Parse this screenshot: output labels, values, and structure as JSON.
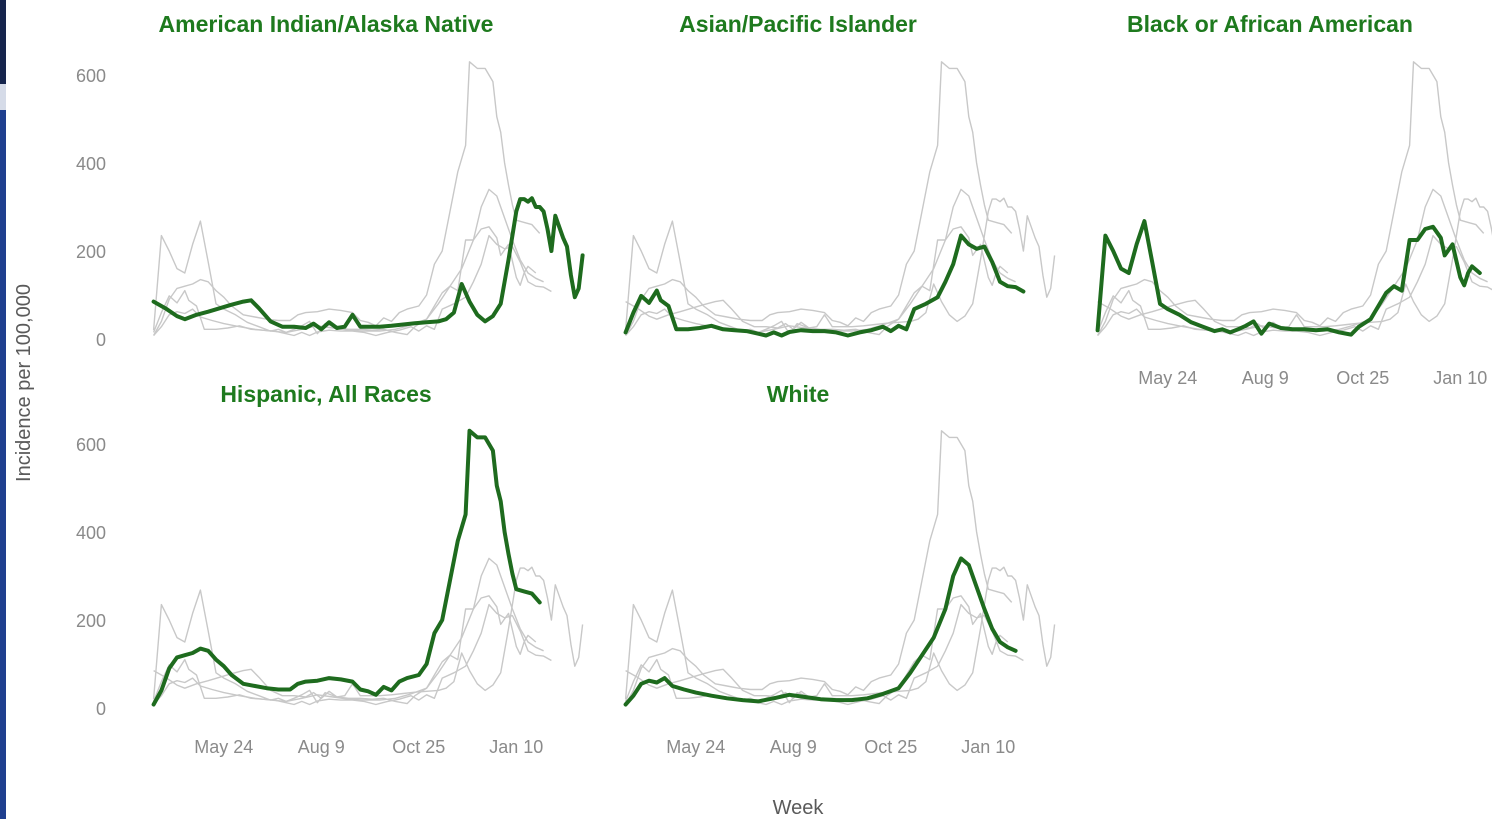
{
  "chart_data": {
    "type": "line",
    "ylabel": "Incidence per 100,000",
    "xlabel": "Week",
    "ylim": [
      0,
      650
    ],
    "y_ticks": [
      0,
      200,
      400,
      600
    ],
    "x_ticks": [
      "May 24",
      "Aug 9",
      "Oct 25",
      "Jan 10"
    ],
    "x_tick_positions": [
      0.22,
      0.47,
      0.72,
      0.97
    ],
    "grid": false,
    "colors": {
      "highlight": "#1e6b1e",
      "background_series": "#c8c8c8",
      "title": "#1e7a1e"
    },
    "panels": [
      {
        "title": "American Indian/Alaska Native",
        "values": [
          [
            0.04,
            85
          ],
          [
            0.07,
            70
          ],
          [
            0.1,
            52
          ],
          [
            0.12,
            45
          ],
          [
            0.15,
            55
          ],
          [
            0.18,
            62
          ],
          [
            0.21,
            70
          ],
          [
            0.24,
            78
          ],
          [
            0.27,
            85
          ],
          [
            0.29,
            88
          ],
          [
            0.31,
            70
          ],
          [
            0.34,
            40
          ],
          [
            0.37,
            28
          ],
          [
            0.4,
            28
          ],
          [
            0.43,
            25
          ],
          [
            0.45,
            35
          ],
          [
            0.47,
            22
          ],
          [
            0.49,
            38
          ],
          [
            0.51,
            25
          ],
          [
            0.53,
            28
          ],
          [
            0.55,
            55
          ],
          [
            0.57,
            28
          ],
          [
            0.59,
            28
          ],
          [
            0.62,
            28
          ],
          [
            0.65,
            30
          ],
          [
            0.68,
            33
          ],
          [
            0.71,
            36
          ],
          [
            0.74,
            38
          ],
          [
            0.77,
            40
          ],
          [
            0.79,
            45
          ],
          [
            0.81,
            60
          ],
          [
            0.83,
            125
          ],
          [
            0.85,
            85
          ],
          [
            0.87,
            55
          ],
          [
            0.89,
            40
          ],
          [
            0.91,
            52
          ],
          [
            0.93,
            80
          ],
          [
            0.95,
            180
          ],
          [
            0.97,
            290
          ],
          [
            0.98,
            318
          ],
          [
            0.99,
            318
          ],
          [
            1.0,
            312
          ],
          [
            1.01,
            320
          ],
          [
            1.02,
            300
          ],
          [
            1.03,
            300
          ],
          [
            1.04,
            290
          ],
          [
            1.05,
            250
          ],
          [
            1.06,
            200
          ],
          [
            1.07,
            280
          ],
          [
            1.08,
            255
          ],
          [
            1.09,
            230
          ],
          [
            1.1,
            210
          ],
          [
            1.11,
            145
          ],
          [
            1.12,
            95
          ],
          [
            1.13,
            115
          ],
          [
            1.14,
            190
          ]
        ]
      },
      {
        "title": "Asian/Pacific Islander",
        "values": [
          [
            0.04,
            15
          ],
          [
            0.06,
            60
          ],
          [
            0.08,
            98
          ],
          [
            0.1,
            82
          ],
          [
            0.12,
            110
          ],
          [
            0.13,
            88
          ],
          [
            0.15,
            75
          ],
          [
            0.17,
            22
          ],
          [
            0.2,
            22
          ],
          [
            0.23,
            25
          ],
          [
            0.26,
            30
          ],
          [
            0.29,
            22
          ],
          [
            0.32,
            20
          ],
          [
            0.35,
            18
          ],
          [
            0.38,
            12
          ],
          [
            0.4,
            8
          ],
          [
            0.42,
            15
          ],
          [
            0.44,
            8
          ],
          [
            0.46,
            16
          ],
          [
            0.49,
            20
          ],
          [
            0.52,
            18
          ],
          [
            0.55,
            18
          ],
          [
            0.58,
            15
          ],
          [
            0.61,
            8
          ],
          [
            0.64,
            15
          ],
          [
            0.67,
            20
          ],
          [
            0.7,
            28
          ],
          [
            0.72,
            18
          ],
          [
            0.74,
            30
          ],
          [
            0.76,
            22
          ],
          [
            0.78,
            68
          ],
          [
            0.81,
            80
          ],
          [
            0.84,
            95
          ],
          [
            0.86,
            130
          ],
          [
            0.88,
            170
          ],
          [
            0.9,
            235
          ],
          [
            0.92,
            215
          ],
          [
            0.94,
            205
          ],
          [
            0.96,
            210
          ],
          [
            0.98,
            175
          ],
          [
            1.0,
            130
          ],
          [
            1.02,
            120
          ],
          [
            1.04,
            118
          ],
          [
            1.06,
            108
          ]
        ]
      },
      {
        "title": "Black or African American",
        "values": [
          [
            0.04,
            20
          ],
          [
            0.06,
            235
          ],
          [
            0.08,
            200
          ],
          [
            0.1,
            160
          ],
          [
            0.12,
            150
          ],
          [
            0.14,
            215
          ],
          [
            0.16,
            268
          ],
          [
            0.18,
            175
          ],
          [
            0.2,
            80
          ],
          [
            0.22,
            68
          ],
          [
            0.25,
            55
          ],
          [
            0.28,
            38
          ],
          [
            0.31,
            28
          ],
          [
            0.34,
            18
          ],
          [
            0.36,
            22
          ],
          [
            0.38,
            15
          ],
          [
            0.4,
            22
          ],
          [
            0.42,
            30
          ],
          [
            0.44,
            40
          ],
          [
            0.46,
            12
          ],
          [
            0.48,
            35
          ],
          [
            0.51,
            25
          ],
          [
            0.54,
            22
          ],
          [
            0.57,
            22
          ],
          [
            0.6,
            20
          ],
          [
            0.63,
            22
          ],
          [
            0.66,
            15
          ],
          [
            0.69,
            10
          ],
          [
            0.71,
            28
          ],
          [
            0.74,
            45
          ],
          [
            0.76,
            75
          ],
          [
            0.78,
            105
          ],
          [
            0.8,
            120
          ],
          [
            0.82,
            110
          ],
          [
            0.84,
            225
          ],
          [
            0.86,
            225
          ],
          [
            0.88,
            250
          ],
          [
            0.9,
            255
          ],
          [
            0.92,
            230
          ],
          [
            0.93,
            190
          ],
          [
            0.95,
            215
          ],
          [
            0.97,
            140
          ],
          [
            0.98,
            122
          ],
          [
            0.99,
            150
          ],
          [
            1.0,
            165
          ],
          [
            1.02,
            150
          ]
        ]
      },
      {
        "title": "Hispanic, All Races",
        "values": [
          [
            0.04,
            8
          ],
          [
            0.06,
            40
          ],
          [
            0.08,
            90
          ],
          [
            0.1,
            115
          ],
          [
            0.12,
            120
          ],
          [
            0.14,
            125
          ],
          [
            0.16,
            135
          ],
          [
            0.18,
            130
          ],
          [
            0.2,
            110
          ],
          [
            0.22,
            95
          ],
          [
            0.24,
            75
          ],
          [
            0.27,
            55
          ],
          [
            0.3,
            50
          ],
          [
            0.33,
            45
          ],
          [
            0.36,
            42
          ],
          [
            0.39,
            42
          ],
          [
            0.41,
            55
          ],
          [
            0.43,
            60
          ],
          [
            0.46,
            62
          ],
          [
            0.49,
            68
          ],
          [
            0.52,
            65
          ],
          [
            0.55,
            60
          ],
          [
            0.57,
            42
          ],
          [
            0.59,
            38
          ],
          [
            0.61,
            30
          ],
          [
            0.63,
            48
          ],
          [
            0.65,
            40
          ],
          [
            0.67,
            60
          ],
          [
            0.69,
            68
          ],
          [
            0.72,
            75
          ],
          [
            0.74,
            100
          ],
          [
            0.76,
            170
          ],
          [
            0.78,
            200
          ],
          [
            0.8,
            290
          ],
          [
            0.82,
            380
          ],
          [
            0.84,
            440
          ],
          [
            0.85,
            630
          ],
          [
            0.87,
            615
          ],
          [
            0.89,
            615
          ],
          [
            0.91,
            585
          ],
          [
            0.92,
            505
          ],
          [
            0.93,
            470
          ],
          [
            0.94,
            400
          ],
          [
            0.95,
            350
          ],
          [
            0.96,
            305
          ],
          [
            0.97,
            270
          ],
          [
            0.99,
            265
          ],
          [
            1.01,
            260
          ],
          [
            1.03,
            240
          ]
        ]
      },
      {
        "title": "White",
        "values": [
          [
            0.04,
            8
          ],
          [
            0.06,
            28
          ],
          [
            0.08,
            55
          ],
          [
            0.1,
            62
          ],
          [
            0.12,
            58
          ],
          [
            0.14,
            68
          ],
          [
            0.16,
            50
          ],
          [
            0.19,
            42
          ],
          [
            0.22,
            35
          ],
          [
            0.26,
            28
          ],
          [
            0.3,
            22
          ],
          [
            0.34,
            18
          ],
          [
            0.38,
            15
          ],
          [
            0.42,
            22
          ],
          [
            0.46,
            30
          ],
          [
            0.5,
            25
          ],
          [
            0.54,
            20
          ],
          [
            0.58,
            18
          ],
          [
            0.62,
            18
          ],
          [
            0.66,
            22
          ],
          [
            0.7,
            32
          ],
          [
            0.74,
            45
          ],
          [
            0.77,
            80
          ],
          [
            0.8,
            120
          ],
          [
            0.83,
            160
          ],
          [
            0.86,
            225
          ],
          [
            0.88,
            300
          ],
          [
            0.9,
            340
          ],
          [
            0.92,
            325
          ],
          [
            0.94,
            275
          ],
          [
            0.96,
            225
          ],
          [
            0.98,
            180
          ],
          [
            1.0,
            150
          ],
          [
            1.02,
            138
          ],
          [
            1.04,
            130
          ]
        ]
      }
    ]
  }
}
